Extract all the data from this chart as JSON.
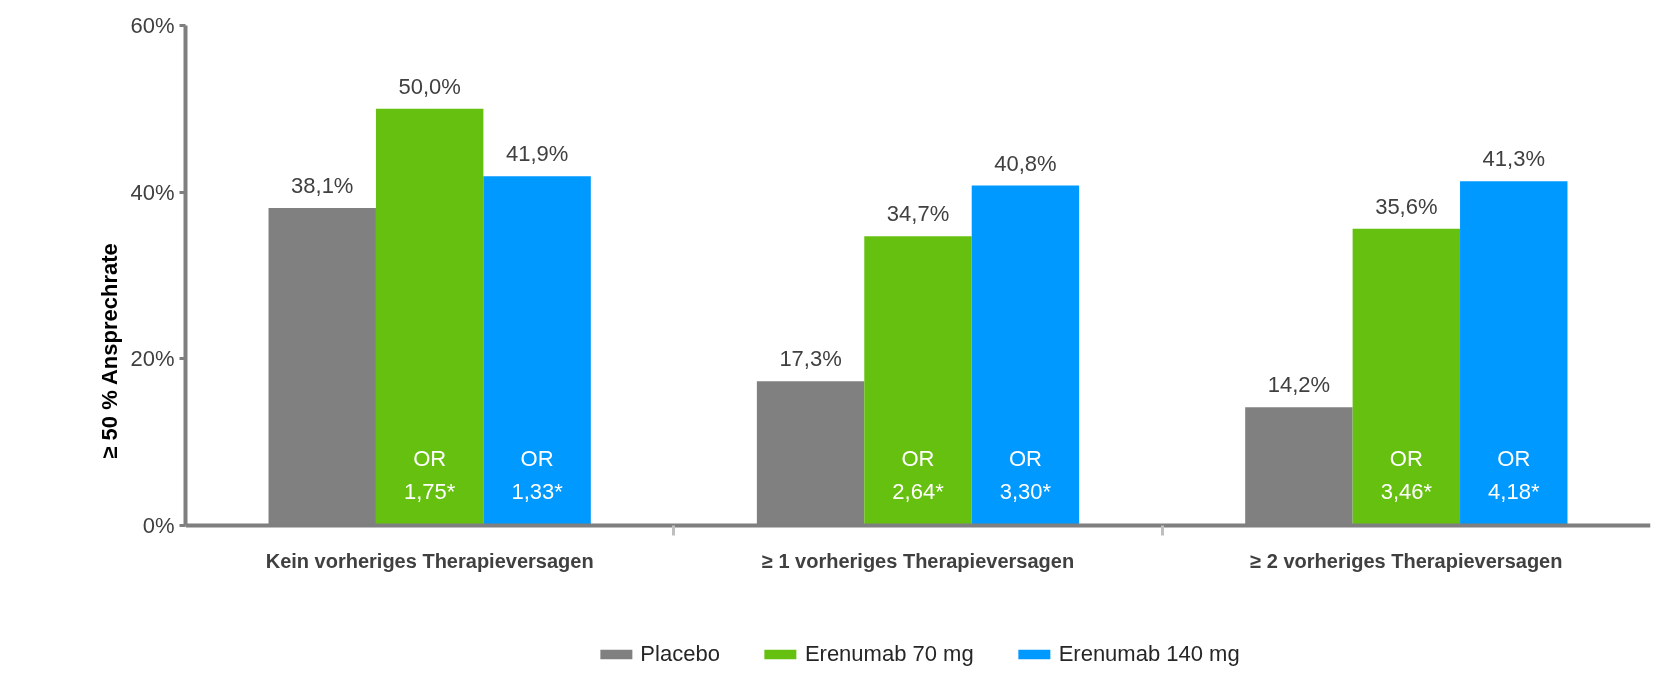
{
  "chart_data": {
    "type": "bar",
    "ylabel": "≥ 50 % Ansprechrate",
    "categories": [
      "Kein vorheriges Therapieversagen",
      "≥ 1 vorheriges Therapieversagen",
      "≥ 2 vorheriges Therapieversagen"
    ],
    "series": [
      {
        "name": "Placebo",
        "color": "#808080",
        "values": [
          38.1,
          17.3,
          14.2
        ],
        "value_labels": [
          "38,1%",
          "17,3%",
          "14,2%"
        ]
      },
      {
        "name": "Erenumab 70 mg",
        "color": "#66c010",
        "values": [
          50.0,
          34.7,
          35.6
        ],
        "value_labels": [
          "50,0%",
          "34,7%",
          "35,6%"
        ]
      },
      {
        "name": "Erenumab 140 mg",
        "color": "#0099ff",
        "values": [
          41.9,
          40.8,
          41.3
        ],
        "value_labels": [
          "41,9%",
          "40,8%",
          "41,3%"
        ]
      }
    ],
    "ylim": [
      0,
      60
    ],
    "yticks": [
      {
        "value": 0,
        "label": "0%"
      },
      {
        "value": 20,
        "label": "20%"
      },
      {
        "value": 40,
        "label": "40%"
      },
      {
        "value": 60,
        "label": "60%"
      }
    ],
    "annotations": [
      "OR\n1,75*",
      "OR\n1,33*",
      "OR\n2,64*",
      "OR\n3,30*",
      "OR\n3,46*",
      "OR\n4,18*"
    ],
    "grid": false,
    "legend": "bottom"
  }
}
